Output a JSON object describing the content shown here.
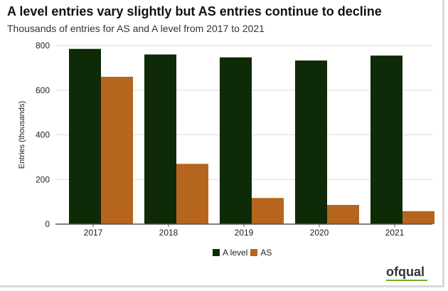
{
  "chart_data": {
    "type": "bar",
    "title": "A level entries vary slightly but AS entries continue to decline",
    "subtitle": "Thousands of entries for AS and A level from 2017 to 2021",
    "xlabel": "",
    "ylabel": "Entries (thousands)",
    "categories": [
      "2017",
      "2018",
      "2019",
      "2020",
      "2021"
    ],
    "ylim": [
      0,
      800
    ],
    "yticks": [
      "0",
      "200",
      "400",
      "600",
      "800"
    ],
    "grid": true,
    "legend_position": "bottom",
    "series": [
      {
        "name": "A level",
        "color": "#0e2a06",
        "values": [
          785,
          760,
          747,
          733,
          755
        ]
      },
      {
        "name": "AS",
        "color": "#b5651d",
        "values": [
          660,
          270,
          117,
          86,
          58
        ]
      }
    ]
  },
  "logo_text": "ofqual"
}
